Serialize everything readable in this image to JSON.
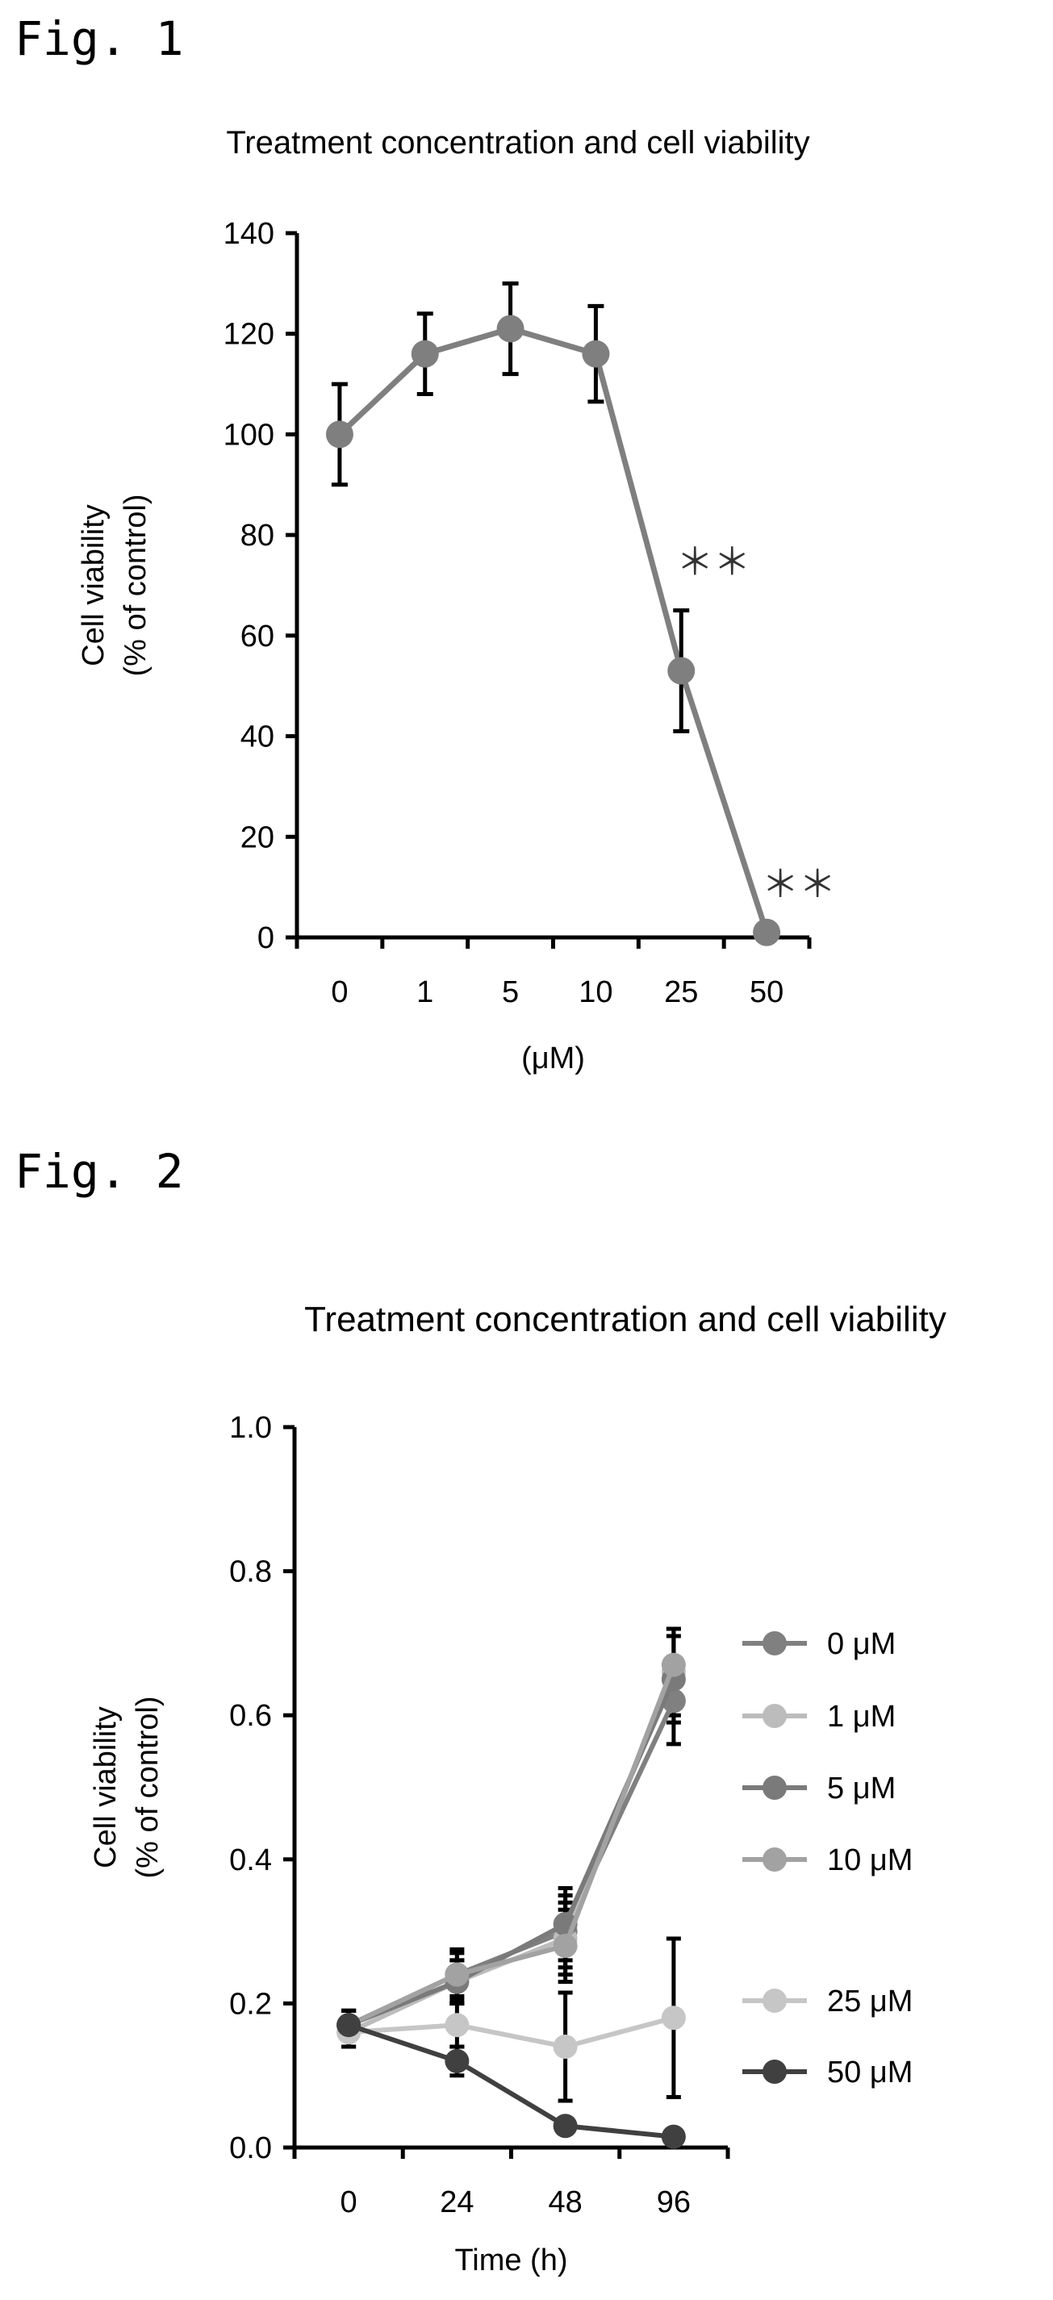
{
  "figures": [
    {
      "label": "Fig. 1"
    },
    {
      "label": "Fig. 2"
    }
  ],
  "colors": {
    "fig1_series": "#7f7f7f",
    "s0": "#808080",
    "s1": "#bcbcbc",
    "s5": "#7a7a7a",
    "s10": "#a2a2a2",
    "s25": "#c6c6c6",
    "s50": "#404040"
  },
  "chart_data": [
    {
      "type": "line",
      "title": "Treatment concentration and cell viability",
      "xlabel": "(μM)",
      "ylabel": [
        "Cell viability",
        "(% of control)"
      ],
      "categories": [
        "0",
        "1",
        "5",
        "10",
        "25",
        "50"
      ],
      "ylim": [
        0,
        140
      ],
      "yticks": [
        0,
        20,
        40,
        60,
        80,
        100,
        120,
        140
      ],
      "series": [
        {
          "values": [
            100,
            116,
            121,
            116,
            53,
            1
          ],
          "errors": [
            10,
            8,
            9,
            9.5,
            12,
            0
          ],
          "annotations": [
            "",
            "",
            "",
            "",
            "＊＊",
            "＊＊"
          ]
        }
      ]
    },
    {
      "type": "line",
      "title": "Treatment concentration and cell viability",
      "xlabel": "Time (h)",
      "ylabel": [
        "Cell viability",
        "(% of control)"
      ],
      "categories": [
        "0",
        "24",
        "48",
        "96"
      ],
      "ylim": [
        0,
        1.0
      ],
      "yticks": [
        "0.0",
        "0.2",
        "0.4",
        "0.6",
        "0.8",
        "1.0"
      ],
      "series": [
        {
          "name": "0 μM",
          "values": [
            0.17,
            0.24,
            0.3,
            0.62
          ],
          "errors": [
            0.02,
            0.035,
            0.05,
            0.06
          ]
        },
        {
          "name": "1 μM",
          "values": [
            0.16,
            0.23,
            0.29,
            0.66
          ],
          "errors": [
            0.02,
            0.03,
            0.05,
            0.06
          ]
        },
        {
          "name": "5 μM",
          "values": [
            0.17,
            0.23,
            0.31,
            0.65
          ],
          "errors": [
            0.02,
            0.03,
            0.05,
            0.06
          ]
        },
        {
          "name": "10 μM",
          "values": [
            0.17,
            0.24,
            0.28,
            0.67
          ],
          "errors": [
            0.02,
            0.03,
            0.05,
            0.05
          ]
        },
        {
          "name": "25 μM",
          "values": [
            0.16,
            0.17,
            0.14,
            0.18
          ],
          "errors": [
            0.02,
            0.03,
            0.075,
            0.11
          ]
        },
        {
          "name": "50 μM",
          "values": [
            0.17,
            0.12,
            0.03,
            0.015
          ],
          "errors": [
            0.02,
            0.02,
            0.01,
            0.005
          ]
        }
      ]
    }
  ]
}
